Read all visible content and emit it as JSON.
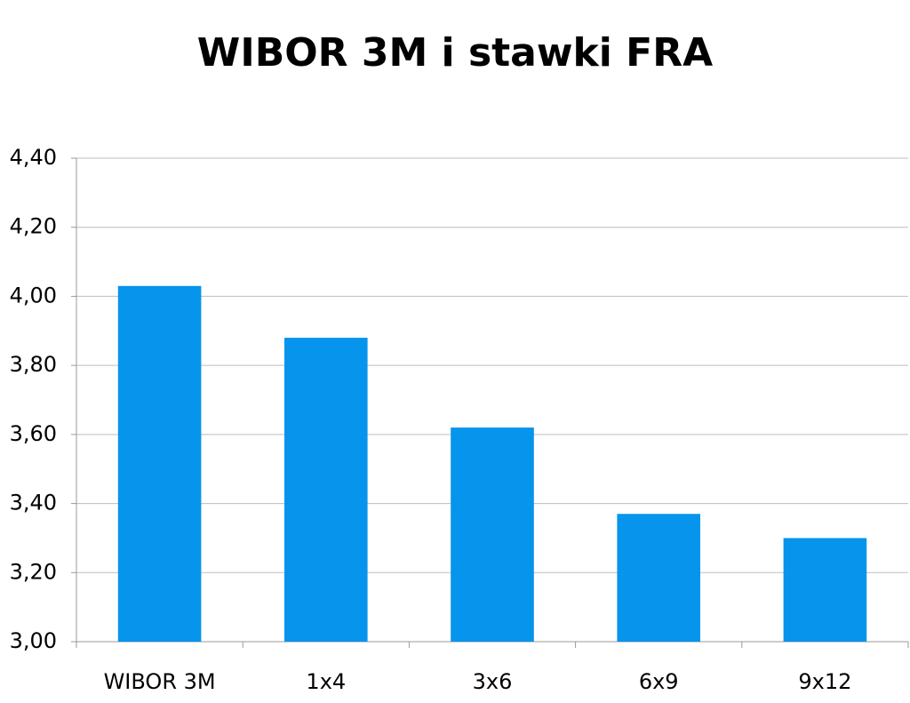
{
  "chart_data": {
    "type": "bar",
    "title": "WIBOR 3M i stawki FRA",
    "categories": [
      "WIBOR 3M",
      "1x4",
      "3x6",
      "6x9",
      "9x12"
    ],
    "values": [
      4.03,
      3.88,
      3.62,
      3.37,
      3.3
    ],
    "color": "#0794ec",
    "ylim": [
      3,
      4.4
    ],
    "yticks": [
      {
        "value": 3,
        "label": "3,00"
      },
      {
        "value": 3.2,
        "label": "3,20"
      },
      {
        "value": 3.4,
        "label": "3,40"
      },
      {
        "value": 3.6,
        "label": "3,60"
      },
      {
        "value": 3.8,
        "label": "3,80"
      },
      {
        "value": 4,
        "label": "4,00"
      },
      {
        "value": 4.2,
        "label": "4,20"
      },
      {
        "value": 4.4,
        "label": "4,40"
      }
    ],
    "grid": true
  }
}
